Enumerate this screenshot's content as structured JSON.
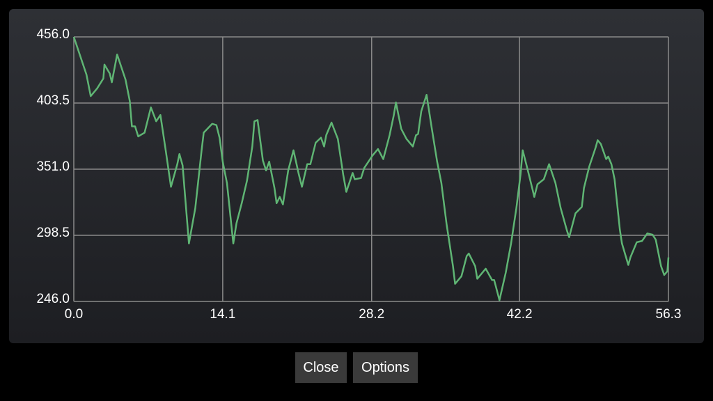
{
  "chart_data": {
    "type": "line",
    "x": [
      0,
      0.6,
      1.2,
      1.6,
      2.2,
      2.8,
      2.9,
      3.4,
      3.6,
      4.1,
      4.9,
      5.3,
      5.5,
      5.8,
      6.1,
      6.7,
      7.3,
      7.8,
      8.2,
      8.7,
      9.2,
      9.8,
      10.0,
      10.3,
      10.9,
      11.5,
      12.1,
      12.3,
      13.1,
      13.5,
      13.8,
      14.1,
      14.5,
      15.1,
      15.4,
      15.9,
      16.4,
      16.9,
      17.1,
      17.4,
      17.9,
      18.2,
      18.5,
      19.0,
      19.2,
      19.5,
      19.8,
      20.3,
      20.8,
      21.3,
      21.6,
      22.1,
      22.4,
      22.9,
      23.4,
      23.7,
      23.9,
      24.4,
      25.0,
      25.5,
      25.8,
      26.4,
      26.6,
      27.2,
      27.5,
      28.3,
      28.8,
      29.3,
      29.9,
      30.3,
      30.5,
      31.0,
      31.5,
      32.1,
      32.4,
      32.6,
      32.9,
      33.4,
      33.9,
      34.4,
      34.8,
      35.3,
      35.9,
      36.1,
      36.7,
      37.2,
      37.4,
      38.0,
      38.2,
      39.0,
      39.6,
      39.8,
      40.3,
      40.9,
      41.4,
      41.9,
      42.3,
      42.5,
      42.9,
      43.4,
      43.6,
      43.9,
      44.5,
      45.0,
      45.6,
      46.1,
      46.7,
      46.9,
      47.5,
      48.1,
      48.3,
      48.8,
      49.4,
      49.6,
      49.9,
      50.4,
      50.6,
      50.9,
      51.2,
      51.7,
      51.9,
      52.5,
      52.7,
      53.3,
      53.8,
      54.3,
      54.8,
      55.1,
      55.6,
      55.9,
      56.2,
      56.3
    ],
    "series": [
      {
        "color": "#5fb574",
        "values": [
          456,
          441,
          426,
          409,
          415,
          423,
          434,
          427,
          420,
          442,
          422,
          405,
          385,
          385,
          377,
          380,
          400,
          389,
          394,
          366,
          337,
          355,
          363,
          354,
          292,
          320,
          366,
          380,
          387,
          386,
          376,
          357,
          340,
          292,
          308,
          324,
          342,
          369,
          389,
          390,
          358,
          350,
          357,
          336,
          324,
          329,
          323,
          350,
          366,
          347,
          337,
          355,
          355,
          372,
          376,
          369,
          378,
          388,
          375,
          347,
          333,
          348,
          343,
          344,
          352,
          362,
          367,
          359,
          378,
          394,
          404,
          383,
          375,
          369,
          378,
          379,
          397,
          410,
          383,
          357,
          340,
          307,
          274,
          260,
          266,
          282,
          284,
          274,
          264,
          272,
          263,
          263,
          247,
          269,
          292,
          320,
          347,
          366,
          353,
          336,
          329,
          339,
          343,
          355,
          340,
          320,
          302,
          297,
          316,
          321,
          336,
          353,
          368,
          374,
          371,
          359,
          361,
          355,
          343,
          303,
          292,
          275,
          281,
          293,
          294,
          300,
          299,
          295,
          274,
          267,
          270,
          281
        ]
      }
    ],
    "xlim": [
      0,
      56.3
    ],
    "xticks": [
      {
        "value": 0,
        "label": "0.0"
      },
      14.1,
      28.2,
      42.2,
      56.3
    ],
    "ylim": [
      246,
      456
    ],
    "yticks": [
      {
        "value": 246,
        "label": "246.0"
      },
      298.5,
      {
        "value": 351,
        "label": "351.0"
      },
      403.5,
      {
        "value": 456,
        "label": "456.0"
      }
    ],
    "grid": true
  },
  "buttons": [
    "Close",
    "Options"
  ]
}
